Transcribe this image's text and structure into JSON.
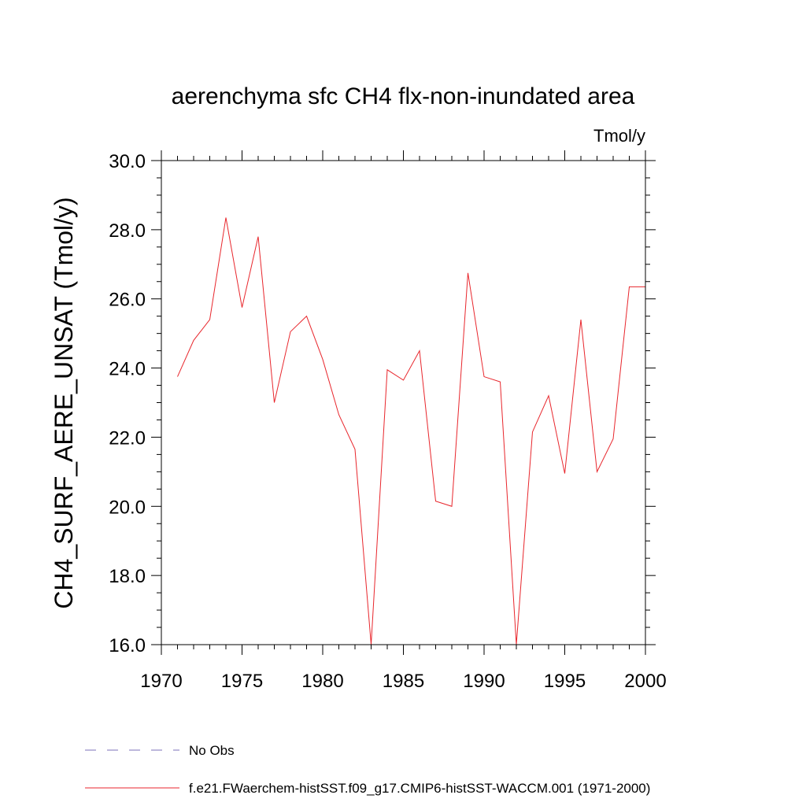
{
  "chart_data": {
    "type": "line",
    "title": "aerenchyma sfc CH4 flx-non-inundated area",
    "units": "Tmol/y",
    "ylabel": "CH4_SURF_AERE_UNSAT  (Tmol/y)",
    "xlabel": "",
    "xlim": [
      1970,
      2000
    ],
    "ylim": [
      16.0,
      30.0
    ],
    "x_ticks": [
      "1970",
      "1975",
      "1980",
      "1985",
      "1990",
      "1995",
      "2000"
    ],
    "y_ticks": [
      "16.0",
      "18.0",
      "20.0",
      "22.0",
      "24.0",
      "26.0",
      "28.0",
      "30.0"
    ],
    "grid": false,
    "legend_position": "bottom-left",
    "series": [
      {
        "name": "No Obs",
        "color": "#7b72b8",
        "style": "dashed",
        "x": [],
        "values": []
      },
      {
        "name": "f.e21.FWaerchem-histSST.f09_g17.CMIP6-histSST-WACCM.001 (1971-2000)",
        "color": "#e8262c",
        "style": "solid",
        "x": [
          1971,
          1972,
          1973,
          1974,
          1975,
          1976,
          1977,
          1978,
          1979,
          1980,
          1981,
          1982,
          1983,
          1984,
          1985,
          1986,
          1987,
          1988,
          1989,
          1990,
          1991,
          1992,
          1993,
          1994,
          1995,
          1996,
          1997,
          1998,
          1999,
          2000
        ],
        "values": [
          23.75,
          24.8,
          25.4,
          28.35,
          25.75,
          27.8,
          23.0,
          25.05,
          25.5,
          24.25,
          22.65,
          21.65,
          16.0,
          23.95,
          23.65,
          24.5,
          20.15,
          20.0,
          26.75,
          23.75,
          23.6,
          16.0,
          22.15,
          23.2,
          20.95,
          25.4,
          21.0,
          21.95,
          26.35,
          26.35
        ]
      }
    ]
  }
}
